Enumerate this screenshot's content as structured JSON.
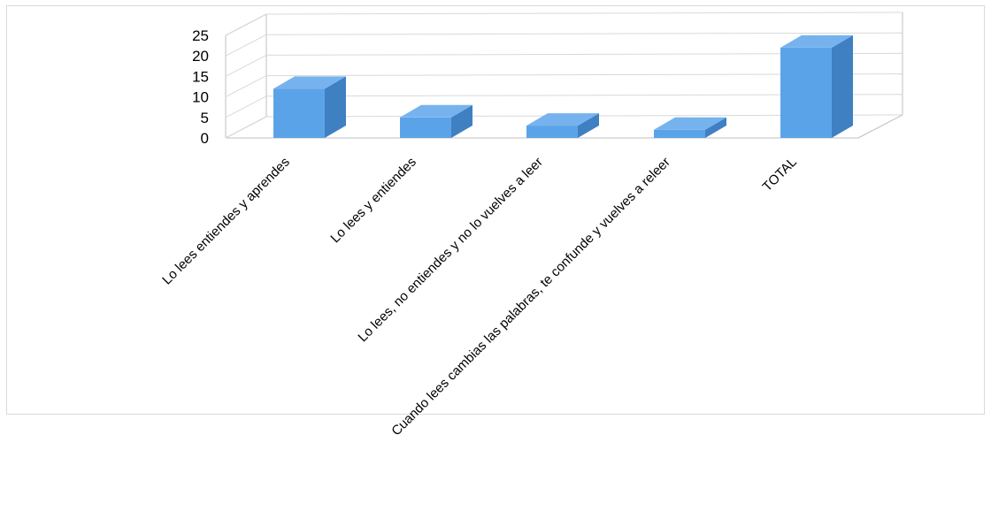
{
  "chart_data": {
    "type": "bar",
    "style": "3d-column",
    "categories": [
      "Lo lees entiendes y aprendes",
      "Lo lees  y entiendes",
      "Lo lees, no entiendes y  no lo vuelves a leer",
      "Cuando lees cambias las palabras, te confunde y vuelves a releer",
      "TOTAL"
    ],
    "values": [
      12,
      5,
      3,
      2,
      22
    ],
    "title": "",
    "xlabel": "",
    "ylabel": "",
    "ylim": [
      0,
      25
    ],
    "yticks": [
      0,
      5,
      10,
      15,
      20,
      25
    ],
    "grid": true,
    "legend": "none",
    "colors": {
      "bar_front": "#5ba3e8",
      "bar_side": "#3f80c2",
      "bar_top": "#76b3ee",
      "bar_edge": "#2f6fad",
      "grid": "#d9d9d9",
      "axis": "#bfbfbf"
    }
  }
}
